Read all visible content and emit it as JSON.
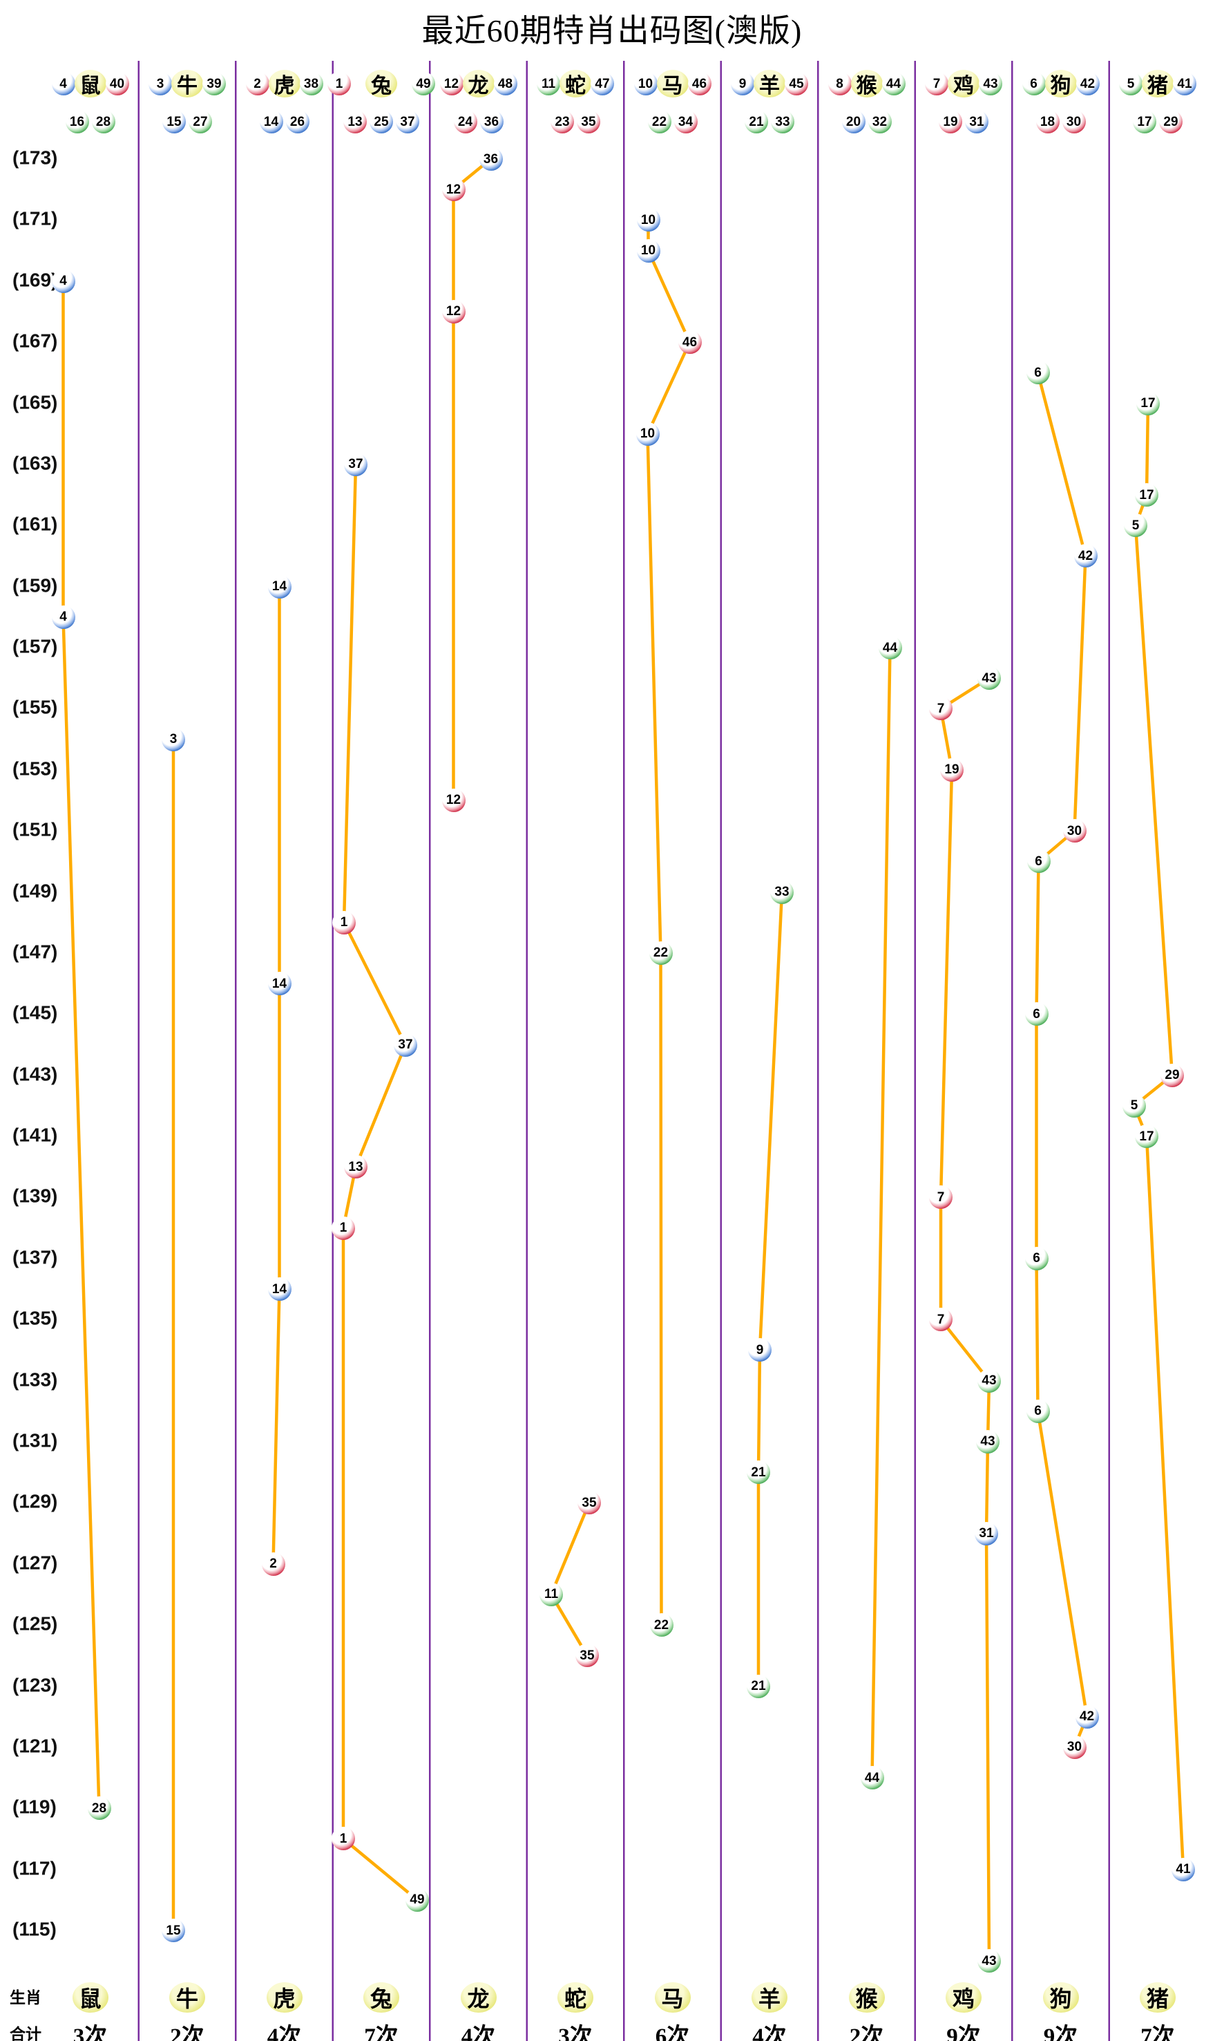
{
  "title": "最近60期特肖出码图(澳版)",
  "footer": {
    "zodiac_row_label": "生肖",
    "total_row_label": "合计"
  },
  "y_axis": {
    "top_period": 173,
    "bottom_period": 115,
    "step": 2,
    "labels": [
      "(173)",
      "(171)",
      "(169)",
      "(167)",
      "(165)",
      "(163)",
      "(161)",
      "(159)",
      "(157)",
      "(155)",
      "(153)",
      "(151)",
      "(149)",
      "(147)",
      "(145)",
      "(143)",
      "(141)",
      "(139)",
      "(137)",
      "(135)",
      "(133)",
      "(131)",
      "(129)",
      "(127)",
      "(125)",
      "(123)",
      "(121)",
      "(119)",
      "(117)",
      "(115)"
    ]
  },
  "palette": {
    "red": "#C8102E",
    "blue": "#1E5FC1",
    "green": "#2F9E3F",
    "line": "#FFAC00",
    "separator": "#7B2FA0",
    "zodiac_bg": "#E6E675",
    "title_color": "#000000"
  },
  "ball_colors": {
    "red": [
      1,
      2,
      7,
      8,
      12,
      13,
      18,
      19,
      23,
      24,
      29,
      30,
      34,
      35,
      40,
      45,
      46
    ],
    "blue": [
      3,
      4,
      9,
      10,
      14,
      15,
      20,
      25,
      26,
      31,
      36,
      37,
      41,
      42,
      47,
      48
    ],
    "green": [
      5,
      6,
      11,
      16,
      17,
      21,
      22,
      27,
      28,
      32,
      33,
      38,
      39,
      43,
      44,
      49
    ]
  },
  "chart_data": {
    "type": "scatter",
    "title": "最近60期特肖出码图(澳版)",
    "x_categories": [
      "鼠",
      "牛",
      "虎",
      "兔",
      "龙",
      "蛇",
      "马",
      "羊",
      "猴",
      "鸡",
      "狗",
      "猪"
    ],
    "y_range": [
      114,
      173
    ],
    "y_tick_step": 2,
    "grid": "vertical-separators-only",
    "series": [
      {
        "zodiac": "鼠",
        "count_label": "3次",
        "header_row1": [
          4,
          40
        ],
        "header_row2": [
          16,
          28
        ],
        "points": [
          {
            "period": 169,
            "num": 4,
            "dx": -39
          },
          {
            "period": 158,
            "num": 4,
            "dx": -39
          },
          {
            "period": 119,
            "num": 28,
            "dx": 13
          }
        ]
      },
      {
        "zodiac": "牛",
        "count_label": "2次",
        "header_row1": [
          3,
          39
        ],
        "header_row2": [
          15,
          27
        ],
        "points": [
          {
            "period": 154,
            "num": 3,
            "dx": -20
          },
          {
            "period": 115,
            "num": 15,
            "dx": -20
          }
        ]
      },
      {
        "zodiac": "虎",
        "count_label": "4次",
        "header_row1": [
          2,
          38
        ],
        "header_row2": [
          14,
          26
        ],
        "points": [
          {
            "period": 159,
            "num": 14,
            "dx": -7
          },
          {
            "period": 146,
            "num": 14,
            "dx": -7
          },
          {
            "period": 136,
            "num": 14,
            "dx": -7
          },
          {
            "period": 127,
            "num": 2,
            "dx": -16
          }
        ]
      },
      {
        "zodiac": "兔",
        "count_label": "7次",
        "header_row1": [
          1,
          49
        ],
        "header_row2": [
          13,
          25,
          37
        ],
        "points": [
          {
            "period": 163,
            "num": 37,
            "dx": -37
          },
          {
            "period": 148,
            "num": 1,
            "dx": -54
          },
          {
            "period": 144,
            "num": 37,
            "dx": 35
          },
          {
            "period": 140,
            "num": 13,
            "dx": -37
          },
          {
            "period": 138,
            "num": 1,
            "dx": -55
          },
          {
            "period": 118,
            "num": 1,
            "dx": -55
          },
          {
            "period": 116,
            "num": 49,
            "dx": 52
          }
        ]
      },
      {
        "zodiac": "龙",
        "count_label": "4次",
        "header_row1": [
          12,
          48
        ],
        "header_row2": [
          24,
          36
        ],
        "points": [
          {
            "period": 173,
            "num": 36,
            "dx": 18
          },
          {
            "period": 172,
            "num": 12,
            "dx": -36
          },
          {
            "period": 168,
            "num": 12,
            "dx": -36
          },
          {
            "period": 152,
            "num": 12,
            "dx": -36
          }
        ]
      },
      {
        "zodiac": "蛇",
        "count_label": "3次",
        "header_row1": [
          11,
          47
        ],
        "header_row2": [
          23,
          35
        ],
        "points": [
          {
            "period": 129,
            "num": 35,
            "dx": 20
          },
          {
            "period": 126,
            "num": 11,
            "dx": -35
          },
          {
            "period": 124,
            "num": 35,
            "dx": 17
          }
        ]
      },
      {
        "zodiac": "马",
        "count_label": "6次",
        "header_row1": [
          10,
          46
        ],
        "header_row2": [
          22,
          34
        ],
        "points": [
          {
            "period": 171,
            "num": 10,
            "dx": -35
          },
          {
            "period": 170,
            "num": 10,
            "dx": -35
          },
          {
            "period": 167,
            "num": 46,
            "dx": 25
          },
          {
            "period": 164,
            "num": 10,
            "dx": -36
          },
          {
            "period": 147,
            "num": 22,
            "dx": -17
          },
          {
            "period": 125,
            "num": 22,
            "dx": -16
          }
        ]
      },
      {
        "zodiac": "羊",
        "count_label": "4次",
        "header_row1": [
          9,
          45
        ],
        "header_row2": [
          21,
          33
        ],
        "points": [
          {
            "period": 149,
            "num": 33,
            "dx": 18
          },
          {
            "period": 134,
            "num": 9,
            "dx": -14
          },
          {
            "period": 130,
            "num": 21,
            "dx": -16
          },
          {
            "period": 123,
            "num": 21,
            "dx": -16
          }
        ]
      },
      {
        "zodiac": "猴",
        "count_label": "2次",
        "header_row1": [
          8,
          44
        ],
        "header_row2": [
          20,
          32
        ],
        "points": [
          {
            "period": 157,
            "num": 44,
            "dx": 34
          },
          {
            "period": 120,
            "num": 44,
            "dx": 8
          }
        ]
      },
      {
        "zodiac": "鸡",
        "count_label": "9次",
        "header_row1": [
          7,
          43
        ],
        "header_row2": [
          19,
          31
        ],
        "points": [
          {
            "period": 156,
            "num": 43,
            "dx": 37
          },
          {
            "period": 155,
            "num": 7,
            "dx": -33
          },
          {
            "period": 153,
            "num": 19,
            "dx": -17
          },
          {
            "period": 139,
            "num": 7,
            "dx": -33
          },
          {
            "period": 135,
            "num": 7,
            "dx": -33
          },
          {
            "period": 133,
            "num": 43,
            "dx": 37
          },
          {
            "period": 131,
            "num": 43,
            "dx": 35
          },
          {
            "period": 128,
            "num": 31,
            "dx": 33
          },
          {
            "period": 114,
            "num": 43,
            "dx": 37
          }
        ]
      },
      {
        "zodiac": "狗",
        "count_label": "9次",
        "header_row1": [
          6,
          42
        ],
        "header_row2": [
          18,
          30
        ],
        "points": [
          {
            "period": 166,
            "num": 6,
            "dx": -33
          },
          {
            "period": 160,
            "num": 42,
            "dx": 36
          },
          {
            "period": 151,
            "num": 30,
            "dx": 20
          },
          {
            "period": 150,
            "num": 6,
            "dx": -32
          },
          {
            "period": 145,
            "num": 6,
            "dx": -35
          },
          {
            "period": 137,
            "num": 6,
            "dx": -35
          },
          {
            "period": 132,
            "num": 6,
            "dx": -33
          },
          {
            "period": 122,
            "num": 42,
            "dx": 38
          },
          {
            "period": 121,
            "num": 30,
            "dx": 20
          }
        ]
      },
      {
        "zodiac": "猪",
        "count_label": "7次",
        "header_row1": [
          5,
          41
        ],
        "header_row2": [
          17,
          29
        ],
        "points": [
          {
            "period": 165,
            "num": 17,
            "dx": -14
          },
          {
            "period": 162,
            "num": 17,
            "dx": -16
          },
          {
            "period": 161,
            "num": 5,
            "dx": -32
          },
          {
            "period": 143,
            "num": 29,
            "dx": 21
          },
          {
            "period": 142,
            "num": 5,
            "dx": -34
          },
          {
            "period": 141,
            "num": 17,
            "dx": -16
          },
          {
            "period": 117,
            "num": 41,
            "dx": 37
          }
        ]
      }
    ]
  }
}
